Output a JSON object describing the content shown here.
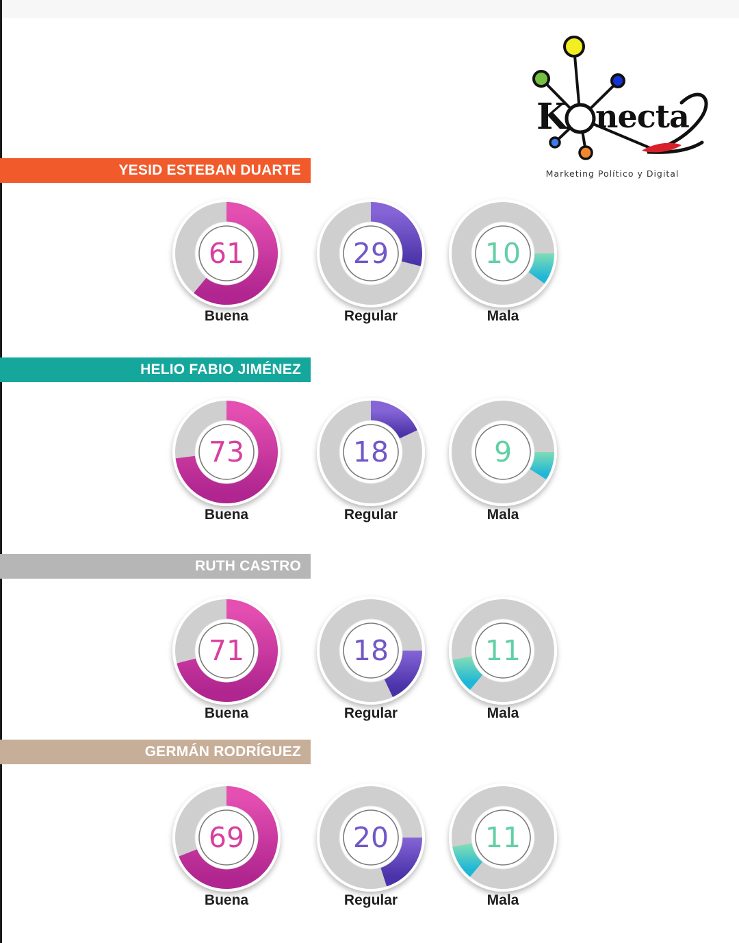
{
  "brand": {
    "logo_text": "Konecta",
    "tagline": "Marketing Político y Digital"
  },
  "chart_data": [
    {
      "type": "pie",
      "title": "YESID ESTEBAN DUARTE",
      "title_color": "#f15a2b",
      "categories": [
        "Buena",
        "Regular",
        "Mala"
      ],
      "values": [
        61,
        29,
        10
      ]
    },
    {
      "type": "pie",
      "title": "HELIO FABIO JIMÉNEZ",
      "title_color": "#16a79c",
      "categories": [
        "Buena",
        "Regular",
        "Mala"
      ],
      "values": [
        73,
        18,
        9
      ]
    },
    {
      "type": "pie",
      "title": "RUTH CASTRO",
      "title_color": "#b6b6b6",
      "categories": [
        "Buena",
        "Regular",
        "Mala"
      ],
      "values": [
        71,
        18,
        11
      ]
    },
    {
      "type": "pie",
      "title": "GERMÁN RODRÍGUEZ",
      "title_color": "#c7ae98",
      "categories": [
        "Buena",
        "Regular",
        "Mala"
      ],
      "values": [
        69,
        20,
        11
      ]
    }
  ],
  "gauge_styles": {
    "Buena": {
      "gradient": [
        "#e44fb1",
        "#b0258f"
      ],
      "text_color": "#d8409f"
    },
    "Regular": {
      "gradient": [
        "#8565d6",
        "#4a32a8"
      ],
      "text_color": "#7157c7"
    },
    "Mala": {
      "gradient": [
        "#7fdcb6",
        "#1fb7d6"
      ],
      "text_color": "#63cfa6"
    },
    "track_color": "#cfcfcf"
  }
}
